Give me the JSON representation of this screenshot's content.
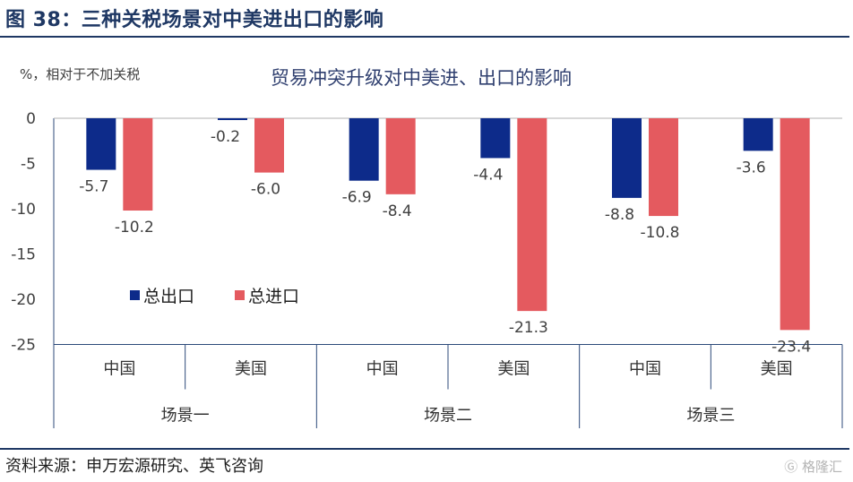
{
  "figure_title": "图 38：三种关税场景对中美进出口的影响",
  "source": "资料来源：申万宏源研究、英飞咨询",
  "watermark": "格隆汇",
  "watermark_icon": "geli-logo-icon",
  "colors": {
    "export": "#0d2b8a",
    "import": "#e45a5f",
    "frame": "#1f3864"
  },
  "chart_data": {
    "type": "bar",
    "title": "贸易冲突升级对中美进、出口的影响",
    "unit_label": "%，相对于不加关税",
    "ylim": [
      -25,
      0
    ],
    "yticks": [
      0,
      -5,
      -10,
      -15,
      -20,
      -25
    ],
    "categories": [
      "中国",
      "美国",
      "中国",
      "美国",
      "中国",
      "美国"
    ],
    "groups": [
      "场景一",
      "场景二",
      "场景三"
    ],
    "series": [
      {
        "name": "总出口",
        "values": [
          -5.7,
          -0.2,
          -6.9,
          -4.4,
          -8.8,
          -3.6
        ]
      },
      {
        "name": "总进口",
        "values": [
          -10.2,
          -6.0,
          -8.4,
          -21.3,
          -10.8,
          -23.4
        ]
      }
    ],
    "grid": false,
    "legend": "center-left"
  }
}
